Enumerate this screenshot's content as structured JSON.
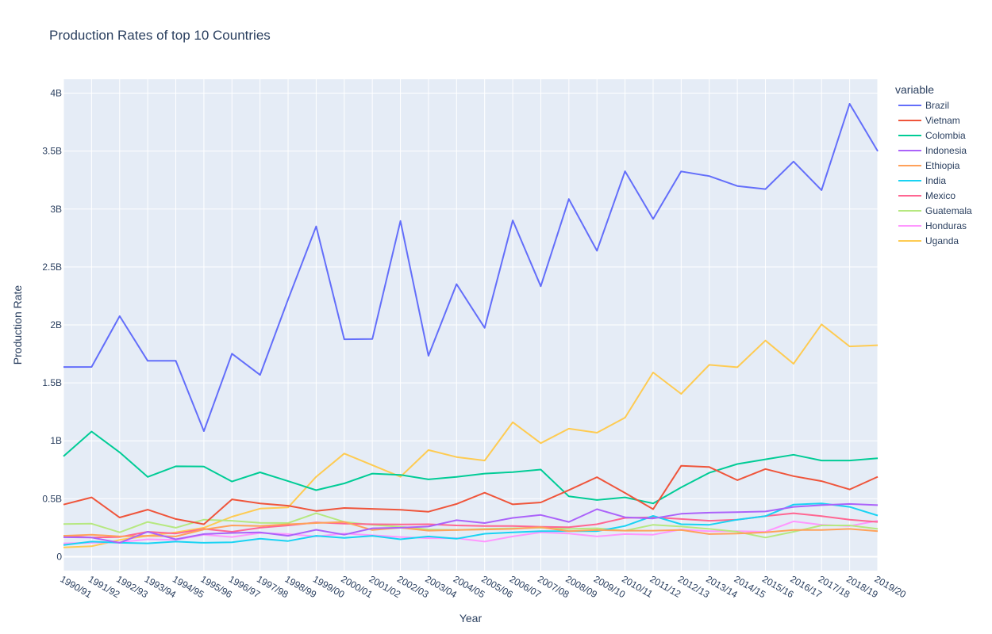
{
  "chart_data": {
    "type": "line",
    "title": "Production Rates of top 10 Countries",
    "xlabel": "Year",
    "ylabel": "Production Rate",
    "legend_title": "variable",
    "legend_position": "right",
    "grid": true,
    "ylim": [
      -120000000,
      4120000000
    ],
    "y_ticks": [
      0,
      500000000,
      1000000000,
      1500000000,
      2000000000,
      2500000000,
      3000000000,
      3500000000,
      4000000000
    ],
    "y_tick_labels": [
      "0",
      "0.5B",
      "1B",
      "1.5B",
      "2B",
      "2.5B",
      "3B",
      "3.5B",
      "4B"
    ],
    "categories": [
      "1990/91",
      "1991/92",
      "1992/93",
      "1993/94",
      "1994/95",
      "1995/96",
      "1996/97",
      "1997/98",
      "1998/99",
      "1999/00",
      "2000/01",
      "2001/02",
      "2002/03",
      "2003/04",
      "2004/05",
      "2005/06",
      "2006/07",
      "2007/08",
      "2008/09",
      "2009/10",
      "2010/11",
      "2011/12",
      "2012/13",
      "2013/14",
      "2014/15",
      "2015/16",
      "2016/17",
      "2017/18",
      "2018/19",
      "2019/20"
    ],
    "series": [
      {
        "name": "Brazil",
        "color": "#636efa",
        "values": [
          1637160000,
          1637640000,
          2076180000,
          1690020000,
          1691100000,
          1083360000,
          1751460000,
          1568400000,
          2220000000,
          2850000000,
          1876000000,
          1879000000,
          2897000000,
          1734000000,
          2352000000,
          1975000000,
          2902000000,
          2334000000,
          3086000000,
          2640000000,
          3326000000,
          2915000000,
          3325000000,
          3284000000,
          3199000000,
          3172000000,
          3410000000,
          3163000000,
          3908000000,
          3500000000
        ]
      },
      {
        "name": "Vietnam",
        "color": "#EF553B",
        "values": [
          450000000,
          512000000,
          338000000,
          406000000,
          325000000,
          280000000,
          495000000,
          460000000,
          440000000,
          395000000,
          420000000,
          413000000,
          405000000,
          388000000,
          455000000,
          552000000,
          452000000,
          468000000,
          575000000,
          686000000,
          550000000,
          410000000,
          784000000,
          774000000,
          660000000,
          757000000,
          695000000,
          652000000,
          580000000,
          690000000
        ]
      },
      {
        "name": "Colombia",
        "color": "#00cc96",
        "values": [
          867000000,
          1080000000,
          900000000,
          688000000,
          780000000,
          778000000,
          649000000,
          728000000,
          652000000,
          574000000,
          632000000,
          717000000,
          706000000,
          667000000,
          688000000,
          717000000,
          730000000,
          752000000,
          521000000,
          489000000,
          512000000,
          460000000,
          598000000,
          724000000,
          800000000,
          840000000,
          880000000,
          830000000,
          830000000,
          849000000
        ]
      },
      {
        "name": "Indonesia",
        "color": "#ab63fa",
        "values": [
          168000000,
          165000000,
          120000000,
          215000000,
          150000000,
          195000000,
          205000000,
          210000000,
          180000000,
          232000000,
          190000000,
          245000000,
          250000000,
          260000000,
          315000000,
          290000000,
          335000000,
          360000000,
          300000000,
          410000000,
          340000000,
          330000000,
          370000000,
          380000000,
          385000000,
          390000000,
          430000000,
          445000000,
          455000000,
          445000000
        ]
      },
      {
        "name": "Ethiopia",
        "color": "#FFA15A",
        "values": [
          180000000,
          190000000,
          175000000,
          180000000,
          175000000,
          235000000,
          270000000,
          265000000,
          280000000,
          290000000,
          300000000,
          230000000,
          250000000,
          225000000,
          230000000,
          235000000,
          240000000,
          255000000,
          220000000,
          230000000,
          225000000,
          225000000,
          230000000,
          195000000,
          200000000,
          210000000,
          230000000,
          230000000,
          240000000,
          220000000
        ]
      },
      {
        "name": "India",
        "color": "#19d3f3",
        "values": [
          100000000,
          130000000,
          120000000,
          115000000,
          130000000,
          120000000,
          125000000,
          155000000,
          135000000,
          180000000,
          162000000,
          180000000,
          150000000,
          175000000,
          155000000,
          198000000,
          210000000,
          220000000,
          220000000,
          220000000,
          265000000,
          352000000,
          280000000,
          275000000,
          320000000,
          350000000,
          450000000,
          460000000,
          430000000,
          355000000
        ]
      },
      {
        "name": "Mexico",
        "color": "#FF6692",
        "values": [
          180000000,
          165000000,
          170000000,
          215000000,
          200000000,
          240000000,
          215000000,
          250000000,
          270000000,
          295000000,
          285000000,
          280000000,
          278000000,
          280000000,
          270000000,
          265000000,
          265000000,
          258000000,
          255000000,
          280000000,
          335000000,
          340000000,
          325000000,
          310000000,
          320000000,
          350000000,
          375000000,
          350000000,
          320000000,
          300000000
        ]
      },
      {
        "name": "Guatemala",
        "color": "#B6E880",
        "values": [
          282000000,
          285000000,
          210000000,
          300000000,
          250000000,
          320000000,
          310000000,
          292000000,
          290000000,
          375000000,
          300000000,
          275000000,
          258000000,
          235000000,
          230000000,
          240000000,
          245000000,
          250000000,
          240000000,
          245000000,
          225000000,
          275000000,
          260000000,
          240000000,
          215000000,
          165000000,
          215000000,
          270000000,
          270000000,
          240000000
        ]
      },
      {
        "name": "Honduras",
        "color": "#FF97FF",
        "values": [
          115000000,
          120000000,
          125000000,
          150000000,
          145000000,
          190000000,
          170000000,
          205000000,
          195000000,
          175000000,
          200000000,
          185000000,
          170000000,
          160000000,
          160000000,
          130000000,
          175000000,
          210000000,
          200000000,
          175000000,
          195000000,
          190000000,
          235000000,
          220000000,
          220000000,
          215000000,
          305000000,
          275000000,
          265000000,
          310000000
        ]
      },
      {
        "name": "Uganda",
        "color": "#FECB52",
        "values": [
          80000000,
          90000000,
          145000000,
          180000000,
          210000000,
          250000000,
          345000000,
          415000000,
          425000000,
          690000000,
          890000000,
          790000000,
          690000000,
          920000000,
          860000000,
          830000000,
          1160000000,
          980000000,
          1105000000,
          1070000000,
          1200000000,
          1590000000,
          1405000000,
          1655000000,
          1635000000,
          1865000000,
          1665000000,
          2005000000,
          1815000000,
          1825000000
        ]
      }
    ]
  }
}
